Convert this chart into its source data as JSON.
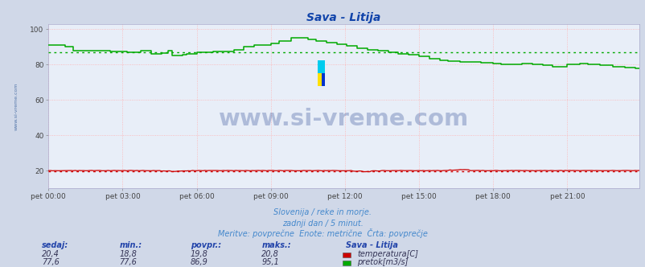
{
  "title": "Sava - Litija",
  "background_color": "#d0d8e8",
  "plot_bg_color": "#e8eef8",
  "grid_color_h": "#ffb0b0",
  "grid_color_v": "#ffb0b0",
  "xlabel_ticks": [
    "pet 00:00",
    "pet 03:00",
    "pet 06:00",
    "pet 09:00",
    "pet 12:00",
    "pet 15:00",
    "pet 18:00",
    "pet 21:00"
  ],
  "tick_positions": [
    0,
    36,
    72,
    108,
    144,
    180,
    216,
    252
  ],
  "total_points": 288,
  "ymin": 10,
  "ymax": 100,
  "yticks": [
    20,
    40,
    60,
    80,
    100
  ],
  "temp_color": "#cc0000",
  "flow_color": "#00aa00",
  "avg_temp": 19.8,
  "avg_flow": 86.9,
  "watermark_text": "www.si-vreme.com",
  "watermark_color": "#1a3a8a",
  "watermark_alpha": 0.28,
  "footer_line1": "Slovenija / reke in morje.",
  "footer_line2": "zadnji dan / 5 minut.",
  "footer_line3": "Meritve: povprečne  Enote: metrične  Črta: povprečje",
  "footer_color": "#4488cc",
  "table_headers": [
    "sedaj:",
    "min.:",
    "povpr.:",
    "maks.:"
  ],
  "table_header_color": "#2244aa",
  "table_values_temp": [
    "20,4",
    "18,8",
    "19,8",
    "20,8"
  ],
  "table_values_flow": [
    "77,6",
    "77,6",
    "86,9",
    "95,1"
  ],
  "table_color": "#333355",
  "station_label": "Sava - Litija",
  "legend_temp": "temperatura[C]",
  "legend_flow": "pretok[m3/s]",
  "left_label": "www.si-vreme.com",
  "left_label_color": "#5577aa"
}
